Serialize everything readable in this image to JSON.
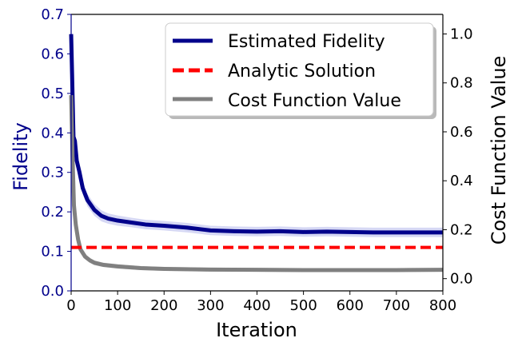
{
  "chart_data": {
    "type": "line",
    "title": "",
    "xlabel": "Iteration",
    "ylabel_left": "Fidelity",
    "ylabel_right": "Cost Function Value",
    "xlim": [
      0,
      800
    ],
    "ylim_left": [
      0.0,
      0.7
    ],
    "ylim_right": [
      -0.05,
      1.08
    ],
    "xticks": [
      0,
      100,
      200,
      300,
      400,
      500,
      600,
      700,
      800
    ],
    "xtick_labels": [
      "0",
      "100",
      "200",
      "300",
      "400",
      "500",
      "600",
      "700",
      "800"
    ],
    "yticks_left": [
      0.0,
      0.1,
      0.2,
      0.3,
      0.4,
      0.5,
      0.6,
      0.7
    ],
    "ytick_labels_left": [
      "0.0",
      "0.1",
      "0.2",
      "0.3",
      "0.4",
      "0.5",
      "0.6",
      "0.7"
    ],
    "yticks_right": [
      0.0,
      0.2,
      0.4,
      0.6,
      0.8,
      1.0
    ],
    "ytick_labels_right": [
      "0.0",
      "0.2",
      "0.4",
      "0.6",
      "0.8",
      "1.0"
    ],
    "legend_position": "top-right",
    "series": [
      {
        "name": "Estimated Fidelity",
        "axis": "left",
        "color": "#00008b",
        "style": "solid",
        "band_color": "#c5c8f0",
        "x": [
          0,
          2,
          5,
          8,
          12,
          18,
          25,
          35,
          50,
          65,
          80,
          100,
          130,
          160,
          200,
          250,
          300,
          350,
          400,
          450,
          500,
          550,
          600,
          650,
          700,
          750,
          800
        ],
        "values": [
          0.65,
          0.55,
          0.39,
          0.38,
          0.33,
          0.3,
          0.26,
          0.23,
          0.205,
          0.19,
          0.183,
          0.178,
          0.173,
          0.168,
          0.165,
          0.16,
          0.153,
          0.151,
          0.15,
          0.151,
          0.149,
          0.15,
          0.149,
          0.148,
          0.148,
          0.148,
          0.148
        ],
        "band": [
          0.0,
          0.0,
          0.0,
          0.0,
          0.012,
          0.014,
          0.016,
          0.016,
          0.015,
          0.014,
          0.013,
          0.013,
          0.012,
          0.012,
          0.012,
          0.012,
          0.012,
          0.012,
          0.012,
          0.012,
          0.012,
          0.012,
          0.012,
          0.012,
          0.012,
          0.012,
          0.012
        ]
      },
      {
        "name": "Analytic Solution",
        "axis": "left",
        "color": "#ff0000",
        "style": "dashed",
        "x": [
          0,
          800
        ],
        "values": [
          0.11,
          0.11
        ]
      },
      {
        "name": "Cost Function Value",
        "axis": "right",
        "color": "#808080",
        "style": "solid",
        "band_color": "#c8c8c8",
        "x": [
          0,
          3,
          6,
          10,
          15,
          20,
          30,
          40,
          50,
          70,
          100,
          150,
          200,
          300,
          400,
          500,
          600,
          700,
          800
        ],
        "values": [
          0.75,
          0.5,
          0.3,
          0.22,
          0.16,
          0.12,
          0.09,
          0.075,
          0.065,
          0.056,
          0.05,
          0.043,
          0.04,
          0.037,
          0.036,
          0.035,
          0.035,
          0.035,
          0.036
        ],
        "band": [
          0.0,
          0.02,
          0.02,
          0.02,
          0.015,
          0.012,
          0.01,
          0.01,
          0.01,
          0.009,
          0.009,
          0.008,
          0.008,
          0.008,
          0.008,
          0.008,
          0.008,
          0.008,
          0.008
        ]
      }
    ]
  }
}
